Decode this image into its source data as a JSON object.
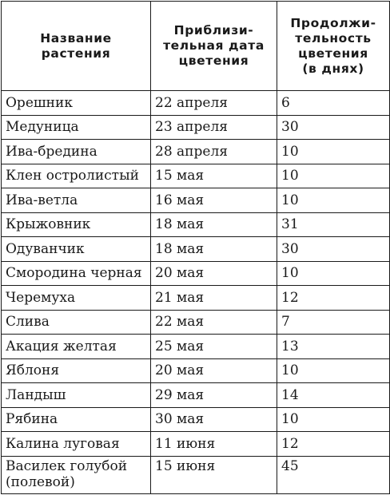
{
  "header": {
    "col1": [
      "Название",
      "растения"
    ],
    "col2": [
      "Приблизи-",
      "тельная дата",
      "цветения"
    ],
    "col3": [
      "Продолжи-",
      "тельность",
      "цветения",
      "(в днях)"
    ]
  },
  "rows": [
    {
      "plant": "Орешник",
      "date": "22 апреля",
      "days": "6"
    },
    {
      "plant": "Медуница",
      "date": "23 апреля",
      "days": "30"
    },
    {
      "plant": "Ива-бредина",
      "date": "28 апреля",
      "days": "10"
    },
    {
      "plant": "Клен остролистый",
      "date": "15 мая",
      "days": "10"
    },
    {
      "plant": "Ива-ветла",
      "date": "16 мая",
      "days": "10"
    },
    {
      "plant": "Крыжовник",
      "date": "18 мая",
      "days": "31"
    },
    {
      "plant": "Одуванчик",
      "date": "18 мая",
      "days": "30"
    },
    {
      "plant": "Смородина черная",
      "date": "20 мая",
      "days": "10"
    },
    {
      "plant": "Черемуха",
      "date": "21 мая",
      "days": "12"
    },
    {
      "plant": "Слива",
      "date": "22 мая",
      "days": "7"
    },
    {
      "plant": "Акация желтая",
      "date": "25 мая",
      "days": "13"
    },
    {
      "plant": "Яблоня",
      "date": "20 мая",
      "days": "10"
    },
    {
      "plant": "Ландыш",
      "date": "29 мая",
      "days": "14"
    },
    {
      "plant": "Рябина",
      "date": "30 мая",
      "days": "10"
    },
    {
      "plant": "Калина луговая",
      "date": "11 июня",
      "days": "12"
    },
    {
      "plant": "Василек голубой (полевой)",
      "date": "15 июня",
      "days": "45"
    }
  ]
}
